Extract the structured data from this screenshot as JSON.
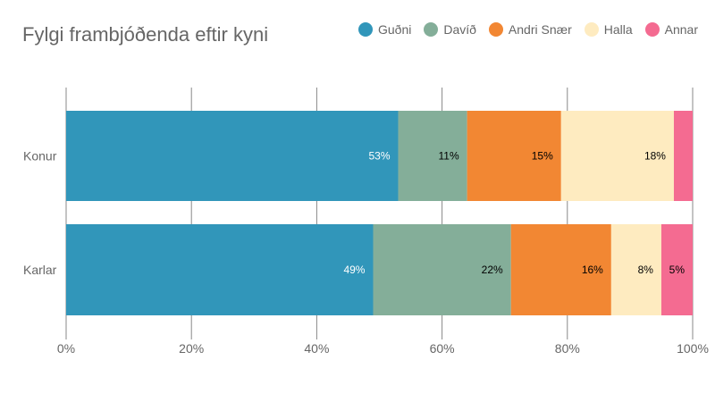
{
  "chart_data": {
    "type": "bar",
    "orientation": "horizontal",
    "stacked": true,
    "title": "Fylgi frambjóðenda eftir kyni",
    "categories": [
      "Konur",
      "Karlar"
    ],
    "series": [
      {
        "name": "Guðni",
        "color": "#3196ba",
        "values": [
          53,
          49
        ],
        "labels": [
          "53%",
          "49%"
        ],
        "label_color": "#ffffff"
      },
      {
        "name": "Davíð",
        "color": "#84ae99",
        "values": [
          11,
          22
        ],
        "labels": [
          "11%",
          "22%"
        ],
        "label_color": "#000000"
      },
      {
        "name": "Andri Snær",
        "color": "#f28733",
        "values": [
          15,
          16
        ],
        "labels": [
          "15%",
          "16%"
        ],
        "label_color": "#000000"
      },
      {
        "name": "Halla",
        "color": "#feebc0",
        "values": [
          18,
          8
        ],
        "labels": [
          "18%",
          "8%"
        ],
        "label_color": "#000000"
      },
      {
        "name": "Annar",
        "color": "#f46b91",
        "values": [
          3,
          5
        ],
        "labels": [
          "",
          "5%"
        ],
        "label_color": "#000000"
      }
    ],
    "xlim": [
      0,
      100
    ],
    "xticks": [
      "0%",
      "20%",
      "40%",
      "60%",
      "80%",
      "100%"
    ],
    "grid": true,
    "legend_position": "top-right"
  }
}
